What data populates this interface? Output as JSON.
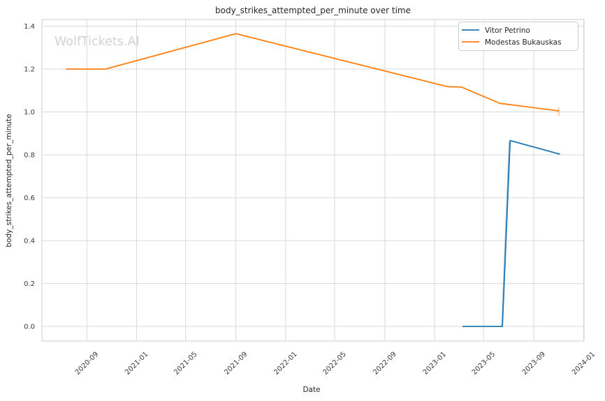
{
  "watermark": {
    "text": "WolfTickets.AI",
    "color": "#d2d2d2"
  },
  "chart_data": {
    "type": "line",
    "title": "body_strikes_attempted_per_minute over time",
    "xlabel": "Date",
    "ylabel": "body_strikes_attempted_per_minute",
    "grid": true,
    "legend_position": "upper right",
    "x_ticks": [
      "2020-09",
      "2021-01",
      "2021-05",
      "2021-09",
      "2022-01",
      "2022-05",
      "2022-09",
      "2023-01",
      "2023-05",
      "2023-09",
      "2024-01"
    ],
    "y_ticks": [
      0.0,
      0.2,
      0.4,
      0.6,
      0.8,
      1.0,
      1.2,
      1.4
    ],
    "xlim": [
      "2020-05-14",
      "2024-01-02"
    ],
    "ylim": [
      -0.068,
      1.431
    ],
    "series": [
      {
        "name": "Vitor Petrino",
        "color": "#1f77b4",
        "points": [
          [
            "2023-03-10",
            0.0
          ],
          [
            "2023-06-16",
            0.0
          ],
          [
            "2023-07-05",
            0.867
          ],
          [
            "2023-11-04",
            0.803
          ]
        ]
      },
      {
        "name": "Modestas Bukauskas",
        "color": "#ff7f0e",
        "points": [
          [
            "2020-07-12",
            1.2
          ],
          [
            "2020-10-17",
            1.2
          ],
          [
            "2021-09-01",
            1.365
          ],
          [
            "2023-02-02",
            1.118
          ],
          [
            "2023-03-08",
            1.116
          ],
          [
            "2023-06-10",
            1.04
          ],
          [
            "2023-11-01",
            1.005
          ]
        ]
      }
    ],
    "error_bars": [
      {
        "series": "Vitor Petrino",
        "x": [
          "2023-06-15",
          "2023-07-03"
        ],
        "y": [
          0.0,
          0.862
        ]
      },
      {
        "series": "Modestas Bukauskas",
        "x": [
          "2023-11-01",
          "2023-11-01"
        ],
        "y": [
          0.982,
          1.021
        ]
      }
    ]
  }
}
